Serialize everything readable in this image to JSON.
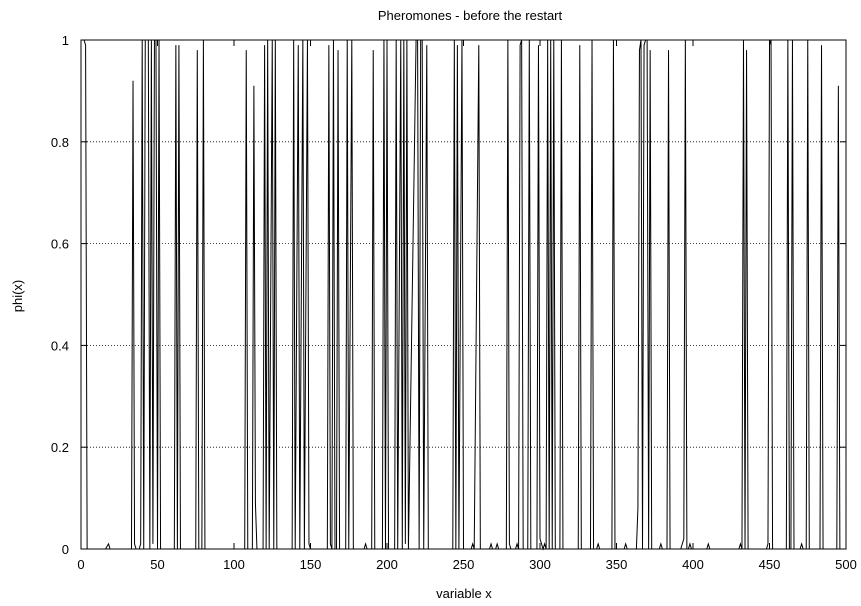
{
  "chart_data": {
    "type": "line",
    "title": "Pheromones - before the restart",
    "xlabel": "variable x",
    "ylabel": "phi(x)",
    "xlim": [
      0,
      500
    ],
    "ylim": [
      0,
      1
    ],
    "xticks": [
      "0",
      "50",
      "100",
      "150",
      "200",
      "250",
      "300",
      "350",
      "400",
      "450",
      "500"
    ],
    "yticks": [
      "0",
      "0.2",
      "0.4",
      "0.6",
      "0.8",
      "1"
    ],
    "grid": "horizontal-dotted",
    "legend": "none",
    "line_color": "#000000",
    "series": [
      {
        "values": [
          [
            0,
            1
          ],
          [
            1,
            1
          ],
          [
            2,
            1
          ],
          [
            3,
            0.99
          ],
          [
            4,
            0
          ],
          [
            16,
            0
          ],
          [
            18,
            0.01
          ],
          [
            19,
            0
          ],
          [
            33,
            0
          ],
          [
            34,
            0.92
          ],
          [
            35,
            0.01
          ],
          [
            36,
            0
          ],
          [
            38,
            0
          ],
          [
            39,
            0.01
          ],
          [
            40,
            1
          ],
          [
            41,
            0
          ],
          [
            42,
            1
          ],
          [
            43,
            1
          ],
          [
            44,
            1
          ],
          [
            45,
            0
          ],
          [
            46,
            1
          ],
          [
            47,
            0.01
          ],
          [
            48,
            1
          ],
          [
            49,
            1
          ],
          [
            50,
            0
          ],
          [
            51,
            1
          ],
          [
            52,
            0
          ],
          [
            61,
            0
          ],
          [
            62,
            0.99
          ],
          [
            63,
            0
          ],
          [
            64,
            0.99
          ],
          [
            65,
            0
          ],
          [
            75,
            0
          ],
          [
            76,
            0.98
          ],
          [
            77,
            0
          ],
          [
            79,
            0
          ],
          [
            80,
            1
          ],
          [
            81,
            0
          ],
          [
            82,
            0
          ],
          [
            101,
            0
          ],
          [
            107,
            0
          ],
          [
            108,
            0.98
          ],
          [
            109,
            0
          ],
          [
            112,
            0
          ],
          [
            113,
            0.91
          ],
          [
            114,
            0.09
          ],
          [
            115,
            0
          ],
          [
            119,
            0
          ],
          [
            120,
            0.99
          ],
          [
            121,
            0
          ],
          [
            122,
            1
          ],
          [
            123,
            0
          ],
          [
            125,
            1
          ],
          [
            126,
            0
          ],
          [
            127,
            1
          ],
          [
            128,
            0
          ],
          [
            138,
            0
          ],
          [
            139,
            1
          ],
          [
            140,
            0
          ],
          [
            142,
            0.99
          ],
          [
            143,
            0
          ],
          [
            145,
            1
          ],
          [
            146,
            0
          ],
          [
            148,
            1
          ],
          [
            149,
            0.01
          ],
          [
            150,
            0
          ],
          [
            155,
            0
          ],
          [
            161,
            0
          ],
          [
            162,
            0.99
          ],
          [
            163,
            0.01
          ],
          [
            164,
            0
          ],
          [
            165,
            1
          ],
          [
            166,
            0
          ],
          [
            167,
            0
          ],
          [
            168,
            0.98
          ],
          [
            169,
            0
          ],
          [
            173,
            0
          ],
          [
            174,
            1
          ],
          [
            175,
            0
          ],
          [
            177,
            1
          ],
          [
            178,
            0
          ],
          [
            185,
            0
          ],
          [
            186,
            0.01
          ],
          [
            187,
            0
          ],
          [
            190,
            0
          ],
          [
            191,
            0.98
          ],
          [
            192,
            0
          ],
          [
            197,
            0
          ],
          [
            198,
            1
          ],
          [
            199,
            0
          ],
          [
            200,
            0.99
          ],
          [
            201,
            0
          ],
          [
            205,
            0
          ],
          [
            206,
            1
          ],
          [
            207,
            0
          ],
          [
            209,
            1
          ],
          [
            210,
            0
          ],
          [
            211,
            1
          ],
          [
            212,
            0.01
          ],
          [
            213,
            1
          ],
          [
            214,
            0
          ],
          [
            219,
            1
          ],
          [
            220,
            1
          ],
          [
            221,
            0
          ],
          [
            222,
            1
          ],
          [
            223,
            1
          ],
          [
            224,
            0
          ],
          [
            226,
            0.99
          ],
          [
            227,
            0
          ],
          [
            243,
            0
          ],
          [
            244,
            1
          ],
          [
            245,
            0
          ],
          [
            246,
            0.99
          ],
          [
            247,
            0
          ],
          [
            249,
            1
          ],
          [
            250,
            0
          ],
          [
            255,
            0
          ],
          [
            256,
            0.01
          ],
          [
            257,
            0
          ],
          [
            260,
            0.99
          ],
          [
            261,
            0
          ],
          [
            267,
            0
          ],
          [
            268,
            0.01
          ],
          [
            269,
            0
          ],
          [
            271,
            0
          ],
          [
            272,
            0.01
          ],
          [
            273,
            0
          ],
          [
            278,
            0
          ],
          [
            279,
            1
          ],
          [
            280,
            0.01
          ],
          [
            281,
            0
          ],
          [
            284,
            0
          ],
          [
            285,
            0.01
          ],
          [
            286,
            0
          ],
          [
            287,
            0.99
          ],
          [
            288,
            1
          ],
          [
            289,
            0
          ],
          [
            292,
            0
          ],
          [
            293,
            1
          ],
          [
            294,
            0
          ],
          [
            298,
            0
          ],
          [
            299,
            0.99
          ],
          [
            300,
            0.02
          ],
          [
            301,
            0.01
          ],
          [
            302,
            0
          ],
          [
            303,
            0.01
          ],
          [
            304,
            0
          ],
          [
            305,
            1
          ],
          [
            306,
            0
          ],
          [
            307,
            1
          ],
          [
            308,
            0
          ],
          [
            309,
            1
          ],
          [
            310,
            0
          ],
          [
            313,
            0
          ],
          [
            314,
            1
          ],
          [
            315,
            0
          ],
          [
            325,
            0
          ],
          [
            326,
            0.99
          ],
          [
            327,
            0
          ],
          [
            333,
            0
          ],
          [
            334,
            1
          ],
          [
            335,
            0
          ],
          [
            337,
            0
          ],
          [
            338,
            0.01
          ],
          [
            339,
            0
          ],
          [
            347,
            0
          ],
          [
            348,
            1
          ],
          [
            349,
            0
          ],
          [
            355,
            0
          ],
          [
            356,
            0.01
          ],
          [
            357,
            0
          ],
          [
            363,
            0
          ],
          [
            364,
            0.08
          ],
          [
            365,
            0.98
          ],
          [
            366,
            1
          ],
          [
            367,
            0
          ],
          [
            368,
            0.99
          ],
          [
            369,
            1
          ],
          [
            370,
            1
          ],
          [
            371,
            0
          ],
          [
            372,
            0.98
          ],
          [
            373,
            0
          ],
          [
            378,
            0
          ],
          [
            379,
            0.01
          ],
          [
            380,
            0
          ],
          [
            383,
            0
          ],
          [
            384,
            0.98
          ],
          [
            385,
            0
          ],
          [
            392,
            0
          ],
          [
            393,
            0.01
          ],
          [
            394,
            0.02
          ],
          [
            395,
            1
          ],
          [
            396,
            0
          ],
          [
            397,
            0
          ],
          [
            398,
            0.01
          ],
          [
            399,
            0
          ],
          [
            409,
            0
          ],
          [
            410,
            0.01
          ],
          [
            411,
            0
          ],
          [
            430,
            0
          ],
          [
            431,
            0.01
          ],
          [
            432,
            0
          ],
          [
            433,
            1
          ],
          [
            434,
            0
          ],
          [
            435,
            0.98
          ],
          [
            436,
            0
          ],
          [
            448,
            0
          ],
          [
            449,
            0.01
          ],
          [
            450,
            0.99
          ],
          [
            451,
            1
          ],
          [
            452,
            0
          ],
          [
            461,
            0
          ],
          [
            462,
            1
          ],
          [
            463,
            0
          ],
          [
            464,
            0
          ],
          [
            465,
            1
          ],
          [
            466,
            0
          ],
          [
            470,
            0
          ],
          [
            471,
            0.01
          ],
          [
            472,
            0
          ],
          [
            474,
            0
          ],
          [
            475,
            1
          ],
          [
            476,
            0
          ],
          [
            483,
            0
          ],
          [
            484,
            0.99
          ],
          [
            485,
            0
          ],
          [
            494,
            0
          ],
          [
            495,
            0.91
          ],
          [
            496,
            0
          ],
          [
            500,
            0
          ]
        ]
      }
    ]
  }
}
